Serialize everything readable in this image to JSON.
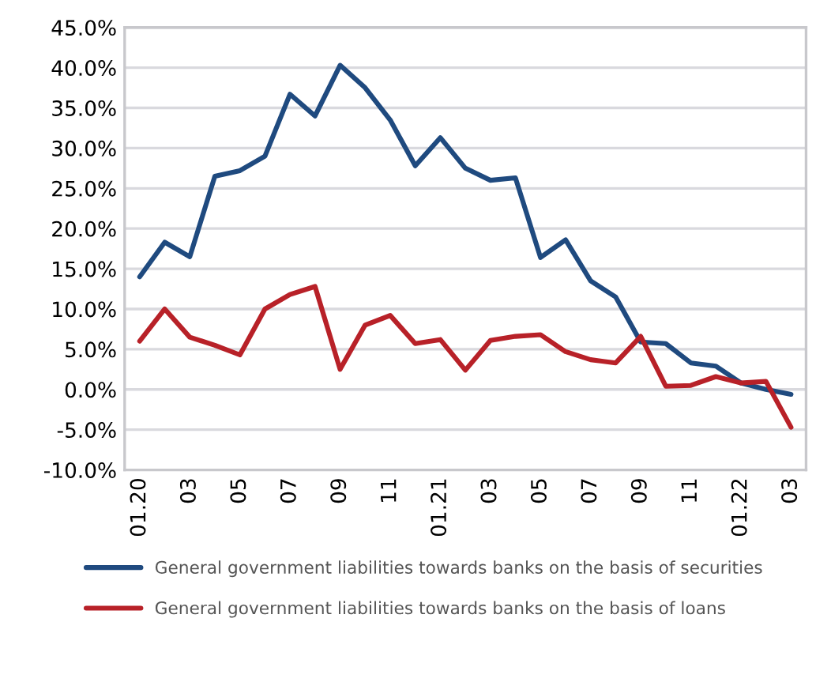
{
  "chart_data": {
    "type": "line",
    "categories": [
      "01.20",
      null,
      "03",
      null,
      "05",
      null,
      "07",
      null,
      "09",
      null,
      "11",
      null,
      "01.21",
      null,
      "03",
      null,
      "05",
      null,
      "07",
      null,
      "09",
      null,
      "11",
      null,
      "01.22",
      null,
      "03"
    ],
    "series": [
      {
        "name": "General government liabilities towards banks on the basis of securities",
        "color": "#1f4a7f",
        "values": [
          14,
          18.3,
          16.5,
          26.5,
          27.2,
          29,
          36.7,
          34,
          40.3,
          37.5,
          33.5,
          27.8,
          31.3,
          27.5,
          26,
          26.3,
          16.4,
          18.6,
          13.5,
          11.5,
          5.9,
          5.7,
          3.3,
          2.9,
          0.8,
          0,
          -0.6
        ]
      },
      {
        "name": "General government liabilities towards banks on the basis of loans",
        "color": "#b82128",
        "values": [
          6,
          10,
          6.5,
          5.5,
          4.3,
          10,
          11.8,
          12.8,
          2.5,
          8,
          9.2,
          5.7,
          6.2,
          2.4,
          6.1,
          6.6,
          6.8,
          4.7,
          3.7,
          3.3,
          6.6,
          0.4,
          0.5,
          1.6,
          0.8,
          1.0,
          -4.7
        ]
      }
    ],
    "ylim": [
      -10,
      45
    ],
    "yticks": [
      {
        "value": -10,
        "label": "-10.0%"
      },
      {
        "value": -5,
        "label": "-5.0%"
      },
      {
        "value": 0,
        "label": "0.0%"
      },
      {
        "value": 5,
        "label": "5.0%"
      },
      {
        "value": 10,
        "label": "10.0%"
      },
      {
        "value": 15,
        "label": "15.0%"
      },
      {
        "value": 20,
        "label": "20.0%"
      },
      {
        "value": 25,
        "label": "25.0%"
      },
      {
        "value": 30,
        "label": "30.0%"
      },
      {
        "value": 35,
        "label": "35.0%"
      },
      {
        "value": 40,
        "label": "40.0%"
      },
      {
        "value": 45,
        "label": "45.0%"
      }
    ],
    "grid": "y",
    "legend": "bottom",
    "marker": "none",
    "line_style": "solid"
  }
}
